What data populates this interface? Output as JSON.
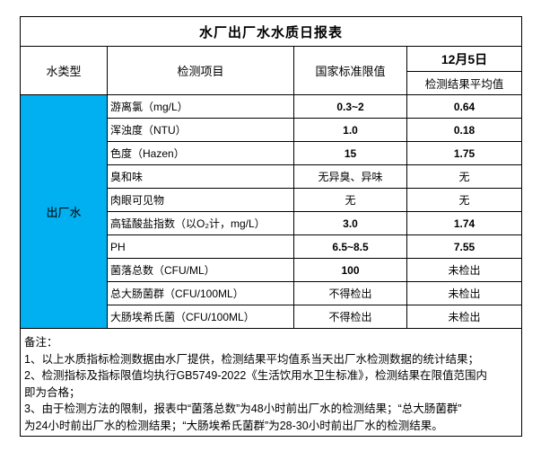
{
  "accent_color": "#00B0F0",
  "title": "水厂出厂水水质日报表",
  "header": {
    "water_type": "水类型",
    "test_item": "检测项目",
    "standard_limit": "国家标准限值",
    "date": "12月5日",
    "result_avg": "检测结果平均值"
  },
  "water_type_value": "出厂水",
  "rows": [
    {
      "item": "游离氯（mg/L）",
      "limit": "0.3~2",
      "result": "0.64"
    },
    {
      "item": "浑浊度（NTU）",
      "limit": "1.0",
      "result": "0.18"
    },
    {
      "item": "色度（Hazen）",
      "limit": "15",
      "result": "1.75"
    },
    {
      "item": "臭和味",
      "limit": "无异臭、异味",
      "result": "无"
    },
    {
      "item": "肉眼可见物",
      "limit": "无",
      "result": "无"
    },
    {
      "item": "高锰酸盐指数（以O₂计，mg/L）",
      "limit": "3.0",
      "result": "1.74"
    },
    {
      "item": "PH",
      "limit": "6.5~8.5",
      "result": "7.55"
    },
    {
      "item": "菌落总数（CFU/ML）",
      "limit": "100",
      "result": "未检出"
    },
    {
      "item": "总大肠菌群（CFU/100ML）",
      "limit": "不得检出",
      "result": "未检出"
    },
    {
      "item": "大肠埃希氏菌（CFU/100ML）",
      "limit": "不得检出",
      "result": "未检出"
    }
  ],
  "notes": {
    "lines": [
      "备注：",
      "1、以上水质指标检测数据由水厂提供，检测结果平均值系当天出厂水检测数据的统计结果；",
      "2、检测指标及指标限值均执行GB5749-2022《生活饮用水卫生标准》，检测结果在限值范围内",
      "即为合格；",
      "3、由于检测方法的限制，报表中“菌落总数”为48小时前出厂水的检测结果；“总大肠菌群”",
      "为24小时前出厂水的检测结果；“大肠埃希氏菌群”为28-30小时前出厂水的检测结果。"
    ]
  }
}
